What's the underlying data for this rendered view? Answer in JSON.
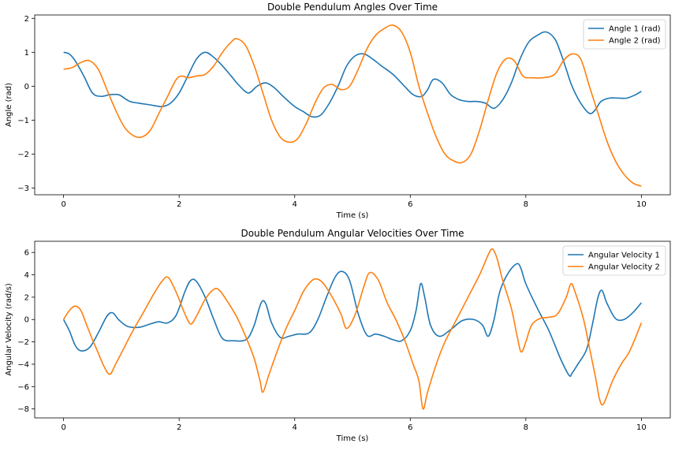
{
  "colors": {
    "series1": "#1f77b4",
    "series2": "#ff7f0e"
  },
  "chart_data": [
    {
      "type": "line",
      "title": "Double Pendulum Angles Over Time",
      "xlabel": "Time (s)",
      "ylabel": "Angle (rad)",
      "xlim": [
        -0.5,
        10.5
      ],
      "ylim": [
        -3.2,
        2.1
      ],
      "xticks": [
        0,
        2,
        4,
        6,
        8,
        10
      ],
      "yticks": [
        -3,
        -2,
        -1,
        0,
        1,
        2
      ],
      "legend_position": "top-right",
      "series": [
        {
          "name": "Angle 1 (rad)",
          "x": [
            0,
            0.1,
            0.2,
            0.35,
            0.5,
            0.65,
            0.8,
            0.95,
            1.05,
            1.15,
            1.3,
            1.5,
            1.7,
            1.85,
            2.0,
            2.15,
            2.3,
            2.45,
            2.6,
            2.75,
            2.9,
            3.05,
            3.2,
            3.35,
            3.5,
            3.65,
            3.8,
            4.0,
            4.15,
            4.3,
            4.45,
            4.6,
            4.75,
            4.9,
            5.05,
            5.2,
            5.35,
            5.5,
            5.7,
            5.9,
            6.05,
            6.2,
            6.3,
            6.4,
            6.55,
            6.7,
            6.85,
            7.0,
            7.15,
            7.3,
            7.45,
            7.6,
            7.75,
            7.9,
            8.05,
            8.2,
            8.35,
            8.5,
            8.6,
            8.7,
            8.8,
            8.95,
            9.1,
            9.2,
            9.3,
            9.45,
            9.6,
            9.75,
            9.9,
            10.0
          ],
          "y": [
            1.0,
            0.95,
            0.75,
            0.3,
            -0.2,
            -0.3,
            -0.25,
            -0.25,
            -0.35,
            -0.45,
            -0.5,
            -0.55,
            -0.6,
            -0.5,
            -0.2,
            0.3,
            0.8,
            1.0,
            0.85,
            0.6,
            0.3,
            0.0,
            -0.2,
            0.0,
            0.1,
            -0.05,
            -0.3,
            -0.6,
            -0.75,
            -0.9,
            -0.85,
            -0.5,
            0.0,
            0.6,
            0.9,
            0.95,
            0.8,
            0.6,
            0.35,
            0.0,
            -0.25,
            -0.3,
            -0.1,
            0.2,
            0.1,
            -0.25,
            -0.4,
            -0.45,
            -0.45,
            -0.5,
            -0.65,
            -0.4,
            0.1,
            0.8,
            1.3,
            1.5,
            1.6,
            1.4,
            1.0,
            0.5,
            0.0,
            -0.5,
            -0.8,
            -0.7,
            -0.45,
            -0.35,
            -0.35,
            -0.35,
            -0.25,
            -0.15
          ]
        },
        {
          "name": "Angle 2 (rad)",
          "x": [
            0,
            0.15,
            0.3,
            0.45,
            0.6,
            0.75,
            0.9,
            1.05,
            1.2,
            1.35,
            1.5,
            1.65,
            1.8,
            1.95,
            2.05,
            2.15,
            2.3,
            2.45,
            2.6,
            2.75,
            2.9,
            3.0,
            3.15,
            3.3,
            3.45,
            3.6,
            3.75,
            3.9,
            4.05,
            4.2,
            4.35,
            4.5,
            4.65,
            4.8,
            4.95,
            5.1,
            5.25,
            5.4,
            5.55,
            5.7,
            5.85,
            6.0,
            6.15,
            6.3,
            6.45,
            6.6,
            6.75,
            6.9,
            7.05,
            7.2,
            7.35,
            7.5,
            7.65,
            7.8,
            7.95,
            8.1,
            8.3,
            8.5,
            8.65,
            8.8,
            8.95,
            9.1,
            9.25,
            9.4,
            9.55,
            9.7,
            9.85,
            10.0
          ],
          "y": [
            0.5,
            0.55,
            0.7,
            0.75,
            0.5,
            -0.1,
            -0.7,
            -1.2,
            -1.45,
            -1.5,
            -1.3,
            -0.8,
            -0.3,
            0.2,
            0.3,
            0.25,
            0.3,
            0.35,
            0.6,
            1.0,
            1.3,
            1.4,
            1.2,
            0.6,
            -0.2,
            -1.0,
            -1.5,
            -1.65,
            -1.55,
            -1.1,
            -0.5,
            -0.05,
            0.05,
            -0.1,
            0.0,
            0.5,
            1.1,
            1.5,
            1.7,
            1.8,
            1.6,
            1.0,
            0.0,
            -0.8,
            -1.5,
            -2.0,
            -2.2,
            -2.25,
            -2.0,
            -1.3,
            -0.4,
            0.4,
            0.8,
            0.75,
            0.3,
            0.25,
            0.25,
            0.35,
            0.75,
            0.95,
            0.8,
            0.0,
            -0.8,
            -1.6,
            -2.2,
            -2.6,
            -2.85,
            -2.95
          ]
        }
      ]
    },
    {
      "type": "line",
      "title": "Double Pendulum Angular Velocities Over Time",
      "xlabel": "Time (s)",
      "ylabel": "Angular Velocity (rad/s)",
      "xlim": [
        -0.5,
        10.5
      ],
      "ylim": [
        -8.8,
        7.0
      ],
      "xticks": [
        0,
        2,
        4,
        6,
        8,
        10
      ],
      "yticks": [
        -8,
        -6,
        -4,
        -2,
        0,
        2,
        4,
        6
      ],
      "legend_position": "top-right",
      "series": [
        {
          "name": "Angular Velocity 1",
          "x": [
            0,
            0.1,
            0.2,
            0.3,
            0.45,
            0.6,
            0.75,
            0.85,
            0.95,
            1.1,
            1.3,
            1.5,
            1.65,
            1.8,
            1.95,
            2.1,
            2.2,
            2.3,
            2.45,
            2.6,
            2.75,
            2.95,
            3.1,
            3.2,
            3.3,
            3.42,
            3.5,
            3.6,
            3.75,
            3.9,
            4.05,
            4.25,
            4.4,
            4.55,
            4.7,
            4.82,
            4.95,
            5.1,
            5.25,
            5.4,
            5.55,
            5.7,
            5.85,
            6.0,
            6.1,
            6.18,
            6.25,
            6.35,
            6.5,
            6.7,
            6.9,
            7.1,
            7.25,
            7.35,
            7.45,
            7.55,
            7.7,
            7.85,
            7.92,
            8.0,
            8.2,
            8.4,
            8.6,
            8.75,
            8.8,
            8.9,
            9.05,
            9.15,
            9.25,
            9.32,
            9.4,
            9.55,
            9.7,
            9.85,
            10.0
          ],
          "y": [
            0.0,
            -1.0,
            -2.3,
            -2.8,
            -2.5,
            -1.2,
            0.3,
            0.6,
            0.0,
            -0.6,
            -0.7,
            -0.4,
            -0.2,
            -0.3,
            0.4,
            2.5,
            3.5,
            3.4,
            2.0,
            0.0,
            -1.7,
            -1.9,
            -1.9,
            -1.6,
            -0.5,
            1.5,
            1.4,
            -0.3,
            -1.6,
            -1.5,
            -1.3,
            -1.2,
            0.0,
            2.0,
            3.8,
            4.3,
            3.5,
            0.5,
            -1.4,
            -1.3,
            -1.5,
            -1.8,
            -1.9,
            -1.0,
            0.8,
            3.2,
            2.0,
            -0.5,
            -1.5,
            -0.9,
            -0.1,
            0.0,
            -0.5,
            -1.5,
            0.0,
            2.5,
            4.2,
            5.0,
            4.5,
            3.2,
            1.0,
            -1.0,
            -3.5,
            -5.0,
            -4.8,
            -4.0,
            -2.7,
            -0.5,
            2.0,
            2.6,
            1.5,
            0.1,
            0.0,
            0.6,
            1.5
          ]
        },
        {
          "name": "Angular Velocity 2",
          "x": [
            0,
            0.1,
            0.2,
            0.3,
            0.4,
            0.5,
            0.6,
            0.7,
            0.8,
            0.9,
            1.05,
            1.2,
            1.4,
            1.55,
            1.7,
            1.8,
            1.9,
            2.0,
            2.1,
            2.2,
            2.3,
            2.45,
            2.6,
            2.7,
            2.85,
            3.0,
            3.15,
            3.3,
            3.4,
            3.45,
            3.55,
            3.7,
            3.85,
            4.0,
            4.15,
            4.3,
            4.4,
            4.5,
            4.65,
            4.8,
            4.9,
            5.05,
            5.2,
            5.3,
            5.45,
            5.6,
            5.75,
            5.9,
            6.05,
            6.15,
            6.22,
            6.3,
            6.45,
            6.6,
            6.8,
            7.0,
            7.2,
            7.35,
            7.42,
            7.5,
            7.6,
            7.75,
            7.85,
            7.92,
            8.0,
            8.1,
            8.25,
            8.4,
            8.55,
            8.7,
            8.78,
            8.85,
            9.0,
            9.1,
            9.2,
            9.28,
            9.35,
            9.5,
            9.65,
            9.8,
            10.0
          ],
          "y": [
            0.0,
            0.8,
            1.2,
            0.8,
            -0.5,
            -1.8,
            -3.0,
            -4.2,
            -4.9,
            -4.0,
            -2.5,
            -1.0,
            0.8,
            2.2,
            3.4,
            3.8,
            3.0,
            1.8,
            0.5,
            -0.4,
            0.3,
            1.8,
            2.7,
            2.6,
            1.5,
            0.2,
            -1.5,
            -3.5,
            -5.5,
            -6.5,
            -5.0,
            -2.8,
            -0.8,
            0.8,
            2.5,
            3.5,
            3.6,
            3.2,
            2.0,
            0.5,
            -0.8,
            0.5,
            3.0,
            4.2,
            3.5,
            1.5,
            0.0,
            -1.8,
            -4.0,
            -5.5,
            -8.0,
            -6.5,
            -4.0,
            -2.0,
            0.0,
            2.0,
            4.0,
            5.8,
            6.3,
            5.5,
            3.5,
            1.0,
            -1.5,
            -2.9,
            -2.0,
            -0.5,
            0.1,
            0.2,
            0.5,
            2.0,
            3.2,
            2.5,
            0.0,
            -2.5,
            -5.0,
            -7.2,
            -7.5,
            -5.5,
            -4.0,
            -2.8,
            -0.3
          ]
        }
      ]
    }
  ]
}
